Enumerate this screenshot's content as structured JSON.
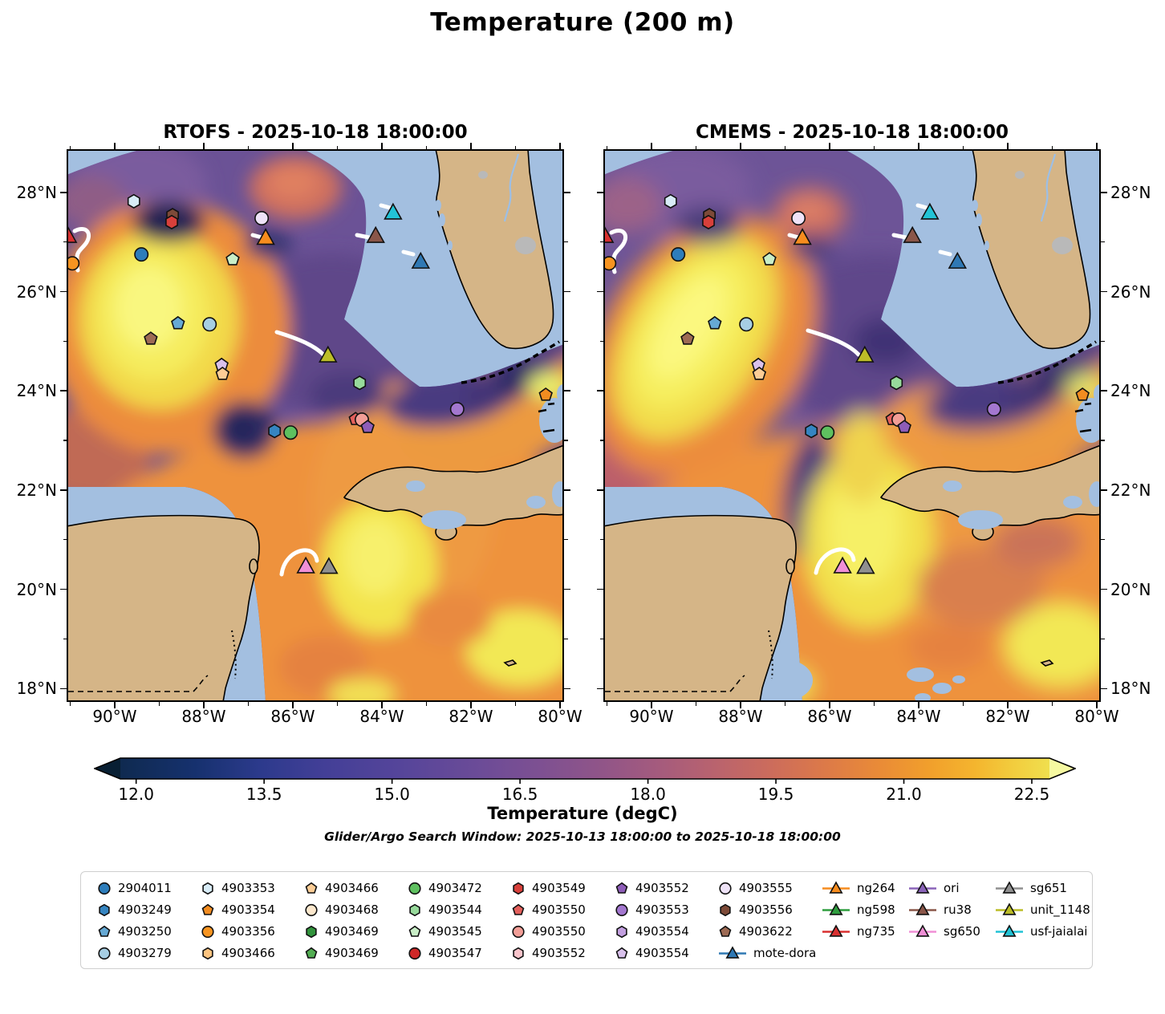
{
  "chart_data": {
    "type": "heatmap",
    "variant": "two-panel filled-contour geographic temperature map with platform markers",
    "suptitle": "Temperature (200 m)",
    "panels": [
      {
        "model": "RTOFS",
        "title": "RTOFS - 2025-10-18 18:00:00"
      },
      {
        "model": "CMEMS",
        "title": "CMEMS - 2025-10-18 18:00:00"
      }
    ],
    "axes": {
      "lon_range": [
        -91.08,
        -79.91
      ],
      "lat_range": [
        17.73,
        28.87
      ],
      "lon_ticks": [
        -90,
        -88,
        -86,
        -84,
        -82,
        -80
      ],
      "lon_tick_labels": [
        "90°W",
        "88°W",
        "86°W",
        "84°W",
        "82°W",
        "80°W"
      ],
      "lat_ticks": [
        28,
        26,
        24,
        22,
        20,
        18
      ],
      "lat_tick_labels": [
        "28°N",
        "26°N",
        "24°N",
        "22°N",
        "20°N",
        "18°N"
      ]
    },
    "colorbar": {
      "label": "Temperature (degC)",
      "min": 12.0,
      "max": 22.5,
      "ticks": [
        12.0,
        13.5,
        15.0,
        16.5,
        18.0,
        19.5,
        21.0,
        22.5
      ],
      "tick_labels": [
        "12.0",
        "13.5",
        "15.0",
        "16.5",
        "18.0",
        "19.5",
        "21.0",
        "22.5"
      ],
      "colormap": "thermal (dark blue - purple - orange - yellow)",
      "extended_both_ends": true
    },
    "search_window": "Glider/Argo Search Window: 2025-10-13 18:00:00 to 2025-10-18 18:00:00",
    "platforms": [
      {
        "id": "4903353",
        "marker": "hexagon",
        "color": "#d8ecf7",
        "lon": -89.57,
        "lat": 27.82
      },
      {
        "id": "4903556",
        "marker": "hexagon",
        "color": "#7d4a38",
        "lon": -88.7,
        "lat": 27.54
      },
      {
        "id": "4903549",
        "marker": "hexagon",
        "color": "#d8403b",
        "lon": -88.72,
        "lat": 27.4
      },
      {
        "id": "4903555",
        "marker": "circle",
        "color": "#efe3f8",
        "lon": -86.7,
        "lat": 27.48
      },
      {
        "id": "ng264",
        "marker": "triangle",
        "color": "#f68c1e",
        "lon": -86.61,
        "lat": 27.07
      },
      {
        "id": "ng735",
        "marker": "triangle",
        "color": "#d93030",
        "lon": -91.05,
        "lat": 27.11
      },
      {
        "id": "4903356",
        "marker": "circle",
        "color": "#f79420",
        "lon": -90.95,
        "lat": 26.57
      },
      {
        "id": "2904011",
        "marker": "circle",
        "color": "#2d7dbb",
        "lon": -89.4,
        "lat": 26.75
      },
      {
        "id": "4903545",
        "marker": "pentagon",
        "color": "#c9eec7",
        "lon": -87.35,
        "lat": 26.65
      },
      {
        "id": "usf-jaialai",
        "marker": "triangle",
        "color": "#22c3d6",
        "lon": -83.75,
        "lat": 27.58
      },
      {
        "id": "ru38",
        "marker": "triangle",
        "color": "#8a5649",
        "lon": -84.14,
        "lat": 27.11
      },
      {
        "id": "mote-dora",
        "marker": "triangle",
        "color": "#2f78b4",
        "lon": -83.13,
        "lat": 26.59
      },
      {
        "id": "4903250",
        "marker": "pentagon",
        "color": "#66a9d4",
        "lon": -88.58,
        "lat": 25.36
      },
      {
        "id": "4903279",
        "marker": "circle",
        "color": "#a6cee3",
        "lon": -87.87,
        "lat": 25.34
      },
      {
        "id": "4903622",
        "marker": "pentagon",
        "color": "#9e6b54",
        "lon": -89.19,
        "lat": 25.05
      },
      {
        "id": "unit_1148",
        "marker": "triangle",
        "color": "#bcbd27",
        "lon": -85.21,
        "lat": 24.7
      },
      {
        "id": "4903554",
        "marker": "pentagon",
        "color": "#d9c1ec",
        "lon": -87.6,
        "lat": 24.52
      },
      {
        "id": "4903466",
        "marker": "pentagon",
        "color": "#fccd96",
        "lon": -87.58,
        "lat": 24.34
      },
      {
        "id": "4903544",
        "marker": "hexagon",
        "color": "#97da9b",
        "lon": -84.5,
        "lat": 24.16
      },
      {
        "id": "4903550",
        "marker": "pentagon",
        "color": "#e4605c",
        "lon": -84.59,
        "lat": 23.43
      },
      {
        "id": "4903550",
        "marker": "circle",
        "color": "#f29e97",
        "lon": -84.45,
        "lat": 23.42
      },
      {
        "id": "4903552",
        "marker": "pentagon",
        "color": "#8e5db8",
        "lon": -84.32,
        "lat": 23.27
      },
      {
        "id": "4903249",
        "marker": "hexagon",
        "color": "#3585c1",
        "lon": -86.41,
        "lat": 23.19
      },
      {
        "id": "4903472",
        "marker": "circle",
        "color": "#5ec05f",
        "lon": -86.05,
        "lat": 23.16
      },
      {
        "id": "4903553",
        "marker": "circle",
        "color": "#a377cf",
        "lon": -82.31,
        "lat": 23.63
      },
      {
        "id": "4903354",
        "marker": "pentagon",
        "color": "#f28c20",
        "lon": -80.32,
        "lat": 23.92
      },
      {
        "id": "sg650",
        "marker": "triangle",
        "color": "#f08fd6",
        "lon": -85.71,
        "lat": 20.45
      },
      {
        "id": "sg651",
        "marker": "triangle",
        "color": "#8f8f8f",
        "lon": -85.19,
        "lat": 20.44
      }
    ],
    "legend_columns": [
      [
        {
          "label": "2904011",
          "marker": "circle",
          "color": "#2d7dbb"
        },
        {
          "label": "4903249",
          "marker": "hexagon",
          "color": "#3585c1"
        },
        {
          "label": "4903250",
          "marker": "pentagon",
          "color": "#66a9d4"
        },
        {
          "label": "4903279",
          "marker": "circle",
          "color": "#a6cee3"
        }
      ],
      [
        {
          "label": "4903353",
          "marker": "hexagon",
          "color": "#d8ecf7"
        },
        {
          "label": "4903354",
          "marker": "pentagon",
          "color": "#f28c20"
        },
        {
          "label": "4903356",
          "marker": "circle",
          "color": "#f79420"
        },
        {
          "label": "4903466",
          "marker": "hexagon",
          "color": "#fcc480"
        }
      ],
      [
        {
          "label": "4903466",
          "marker": "pentagon",
          "color": "#fccd96"
        },
        {
          "label": "4903468",
          "marker": "circle",
          "color": "#fde8cd"
        },
        {
          "label": "4903469",
          "marker": "hexagon",
          "color": "#31933c"
        },
        {
          "label": "4903469",
          "marker": "pentagon",
          "color": "#52ad52"
        }
      ],
      [
        {
          "label": "4903472",
          "marker": "circle",
          "color": "#5ec05f"
        },
        {
          "label": "4903544",
          "marker": "hexagon",
          "color": "#97da9b"
        },
        {
          "label": "4903545",
          "marker": "pentagon",
          "color": "#c9eec7"
        },
        {
          "label": "4903547",
          "marker": "circle",
          "color": "#cf2727"
        }
      ],
      [
        {
          "label": "4903549",
          "marker": "hexagon",
          "color": "#d8403b"
        },
        {
          "label": "4903550",
          "marker": "pentagon",
          "color": "#e4605c"
        },
        {
          "label": "4903550",
          "marker": "circle",
          "color": "#f29e97"
        },
        {
          "label": "4903552",
          "marker": "hexagon",
          "color": "#f9c4cb"
        }
      ],
      [
        {
          "label": "4903552",
          "marker": "pentagon",
          "color": "#8e5db8"
        },
        {
          "label": "4903553",
          "marker": "circle",
          "color": "#a377cf"
        },
        {
          "label": "4903554",
          "marker": "hexagon",
          "color": "#c29fdf"
        },
        {
          "label": "4903554",
          "marker": "pentagon",
          "color": "#d9c1ec"
        }
      ],
      [
        {
          "label": "4903555",
          "marker": "circle",
          "color": "#efe3f8"
        },
        {
          "label": "4903556",
          "marker": "hexagon",
          "color": "#7d4a38"
        },
        {
          "label": "4903622",
          "marker": "pentagon",
          "color": "#9e6b54"
        },
        {
          "label": "mote-dora",
          "marker": "triangle",
          "color": "#2f78b4",
          "track": true
        }
      ],
      [
        {
          "label": "ng264",
          "marker": "triangle",
          "color": "#f68c1e",
          "track": true
        },
        {
          "label": "ng598",
          "marker": "triangle",
          "color": "#2f9e3f",
          "track": true
        },
        {
          "label": "ng735",
          "marker": "triangle",
          "color": "#d93030",
          "track": true
        }
      ],
      [
        {
          "label": "ori",
          "marker": "triangle",
          "color": "#8a63b8",
          "track": true
        },
        {
          "label": "ru38",
          "marker": "triangle",
          "color": "#8a5649",
          "track": true
        },
        {
          "label": "sg650",
          "marker": "triangle",
          "color": "#f08fd6",
          "track": true
        }
      ],
      [
        {
          "label": "sg651",
          "marker": "triangle",
          "color": "#8f8f8f",
          "track": true
        },
        {
          "label": "unit_1148",
          "marker": "triangle",
          "color": "#bcbd27",
          "track": true
        },
        {
          "label": "usf-jaialai",
          "marker": "triangle",
          "color": "#22c3d6",
          "track": true
        }
      ]
    ]
  }
}
